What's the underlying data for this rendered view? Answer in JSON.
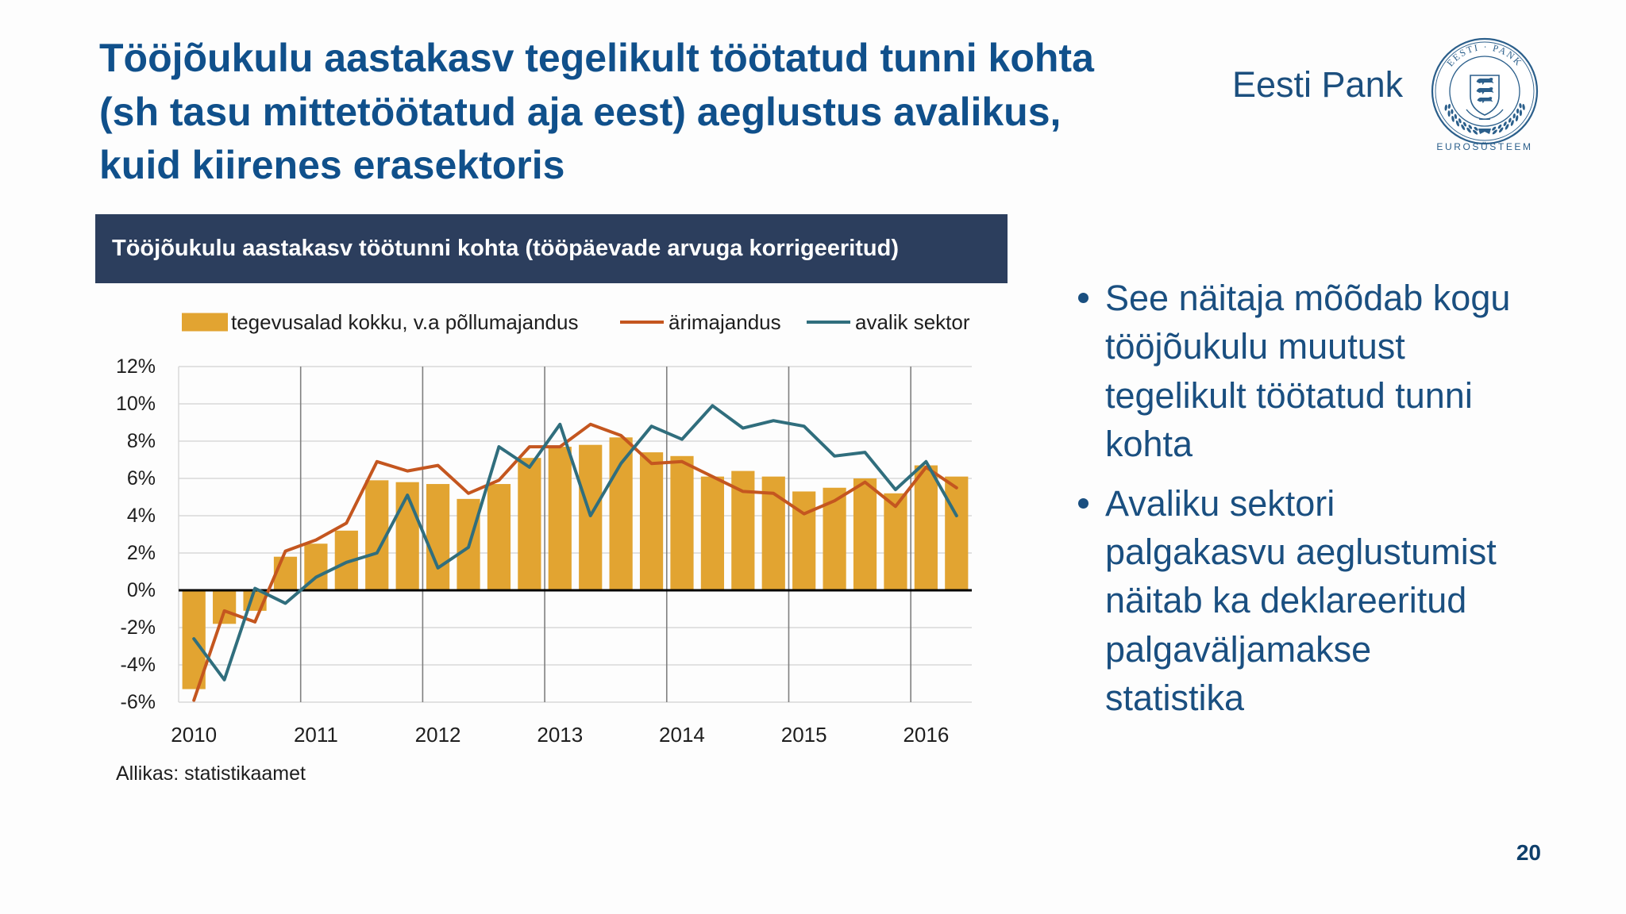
{
  "slide": {
    "title_lines": [
      "Tööjõukulu aastakasv tegelikult töötatud tunni kohta",
      "(sh tasu mittetöötatud aja eest) aeglustus avalikus,",
      "kuid kiirenes erasektoris"
    ],
    "page_number": "20"
  },
  "logo": {
    "wordmark": "Eesti Pank",
    "seal_text": "EESTI · PANK",
    "caption": "EUROSÜSTEEM"
  },
  "bullets": [
    {
      "lines": [
        "See näitaja mõõdab kogu",
        "tööjõukulu muutust",
        "tegelikult töötatud tunni",
        "kohta"
      ]
    },
    {
      "lines": [
        "Avaliku sektori",
        "palgakasvu aeglustumist",
        "näitab ka deklareeritud",
        "palgaväljamakse",
        "statistika"
      ]
    }
  ],
  "colors": {
    "title": "#10508b",
    "text": "#1a4f80",
    "chart_header": "#2c3e5d",
    "seal": "#2b5f8b"
  },
  "chart_data": {
    "type": "bar",
    "title": "Tööjõukulu aastakasv töötunni kohta (tööpäevade arvuga korrigeeritud)",
    "source": "Allikas: statistikaamet",
    "x": [
      "2010Q1",
      "2010Q2",
      "2010Q3",
      "2010Q4",
      "2011Q1",
      "2011Q2",
      "2011Q3",
      "2011Q4",
      "2012Q1",
      "2012Q2",
      "2012Q3",
      "2012Q4",
      "2013Q1",
      "2013Q2",
      "2013Q3",
      "2013Q4",
      "2014Q1",
      "2014Q2",
      "2014Q3",
      "2014Q4",
      "2015Q1",
      "2015Q2",
      "2015Q3",
      "2015Q4",
      "2016Q1",
      "2016Q2"
    ],
    "x_ticks": [
      "2010",
      "2011",
      "2012",
      "2013",
      "2014",
      "2015",
      "2016"
    ],
    "y_ticks": [
      "12%",
      "10%",
      "8%",
      "6%",
      "4%",
      "2%",
      "0%",
      "-2%",
      "-4%",
      "-6%"
    ],
    "ylim": [
      -6,
      12
    ],
    "grid": true,
    "legend": "top",
    "series": [
      {
        "name": "tegevusalad kokku, v.a põllumajandus",
        "type": "bar",
        "color": "#e2a431",
        "values": [
          -5.3,
          -1.8,
          -1.1,
          1.8,
          2.5,
          3.2,
          5.9,
          5.8,
          5.7,
          4.9,
          5.7,
          7.1,
          7.7,
          7.8,
          8.2,
          7.4,
          7.2,
          6.1,
          6.4,
          6.1,
          5.3,
          5.5,
          6.0,
          5.2,
          6.7,
          6.1
        ]
      },
      {
        "name": "ärimajandus",
        "type": "line",
        "color": "#c4561f",
        "values": [
          -5.9,
          -1.1,
          -1.7,
          2.1,
          2.7,
          3.6,
          6.9,
          6.4,
          6.7,
          5.2,
          5.9,
          7.7,
          7.7,
          8.9,
          8.3,
          6.8,
          6.9,
          6.1,
          5.3,
          5.2,
          4.1,
          4.8,
          5.8,
          4.5,
          6.6,
          5.5
        ]
      },
      {
        "name": "avalik sektor",
        "type": "line",
        "color": "#306e7d",
        "values": [
          -2.6,
          -4.8,
          0.1,
          -0.7,
          0.7,
          1.5,
          2.0,
          5.1,
          1.2,
          2.3,
          7.7,
          6.6,
          8.9,
          4.0,
          6.8,
          8.8,
          8.1,
          9.9,
          8.7,
          9.1,
          8.8,
          7.2,
          7.4,
          5.4,
          6.9,
          4.0
        ]
      }
    ]
  }
}
